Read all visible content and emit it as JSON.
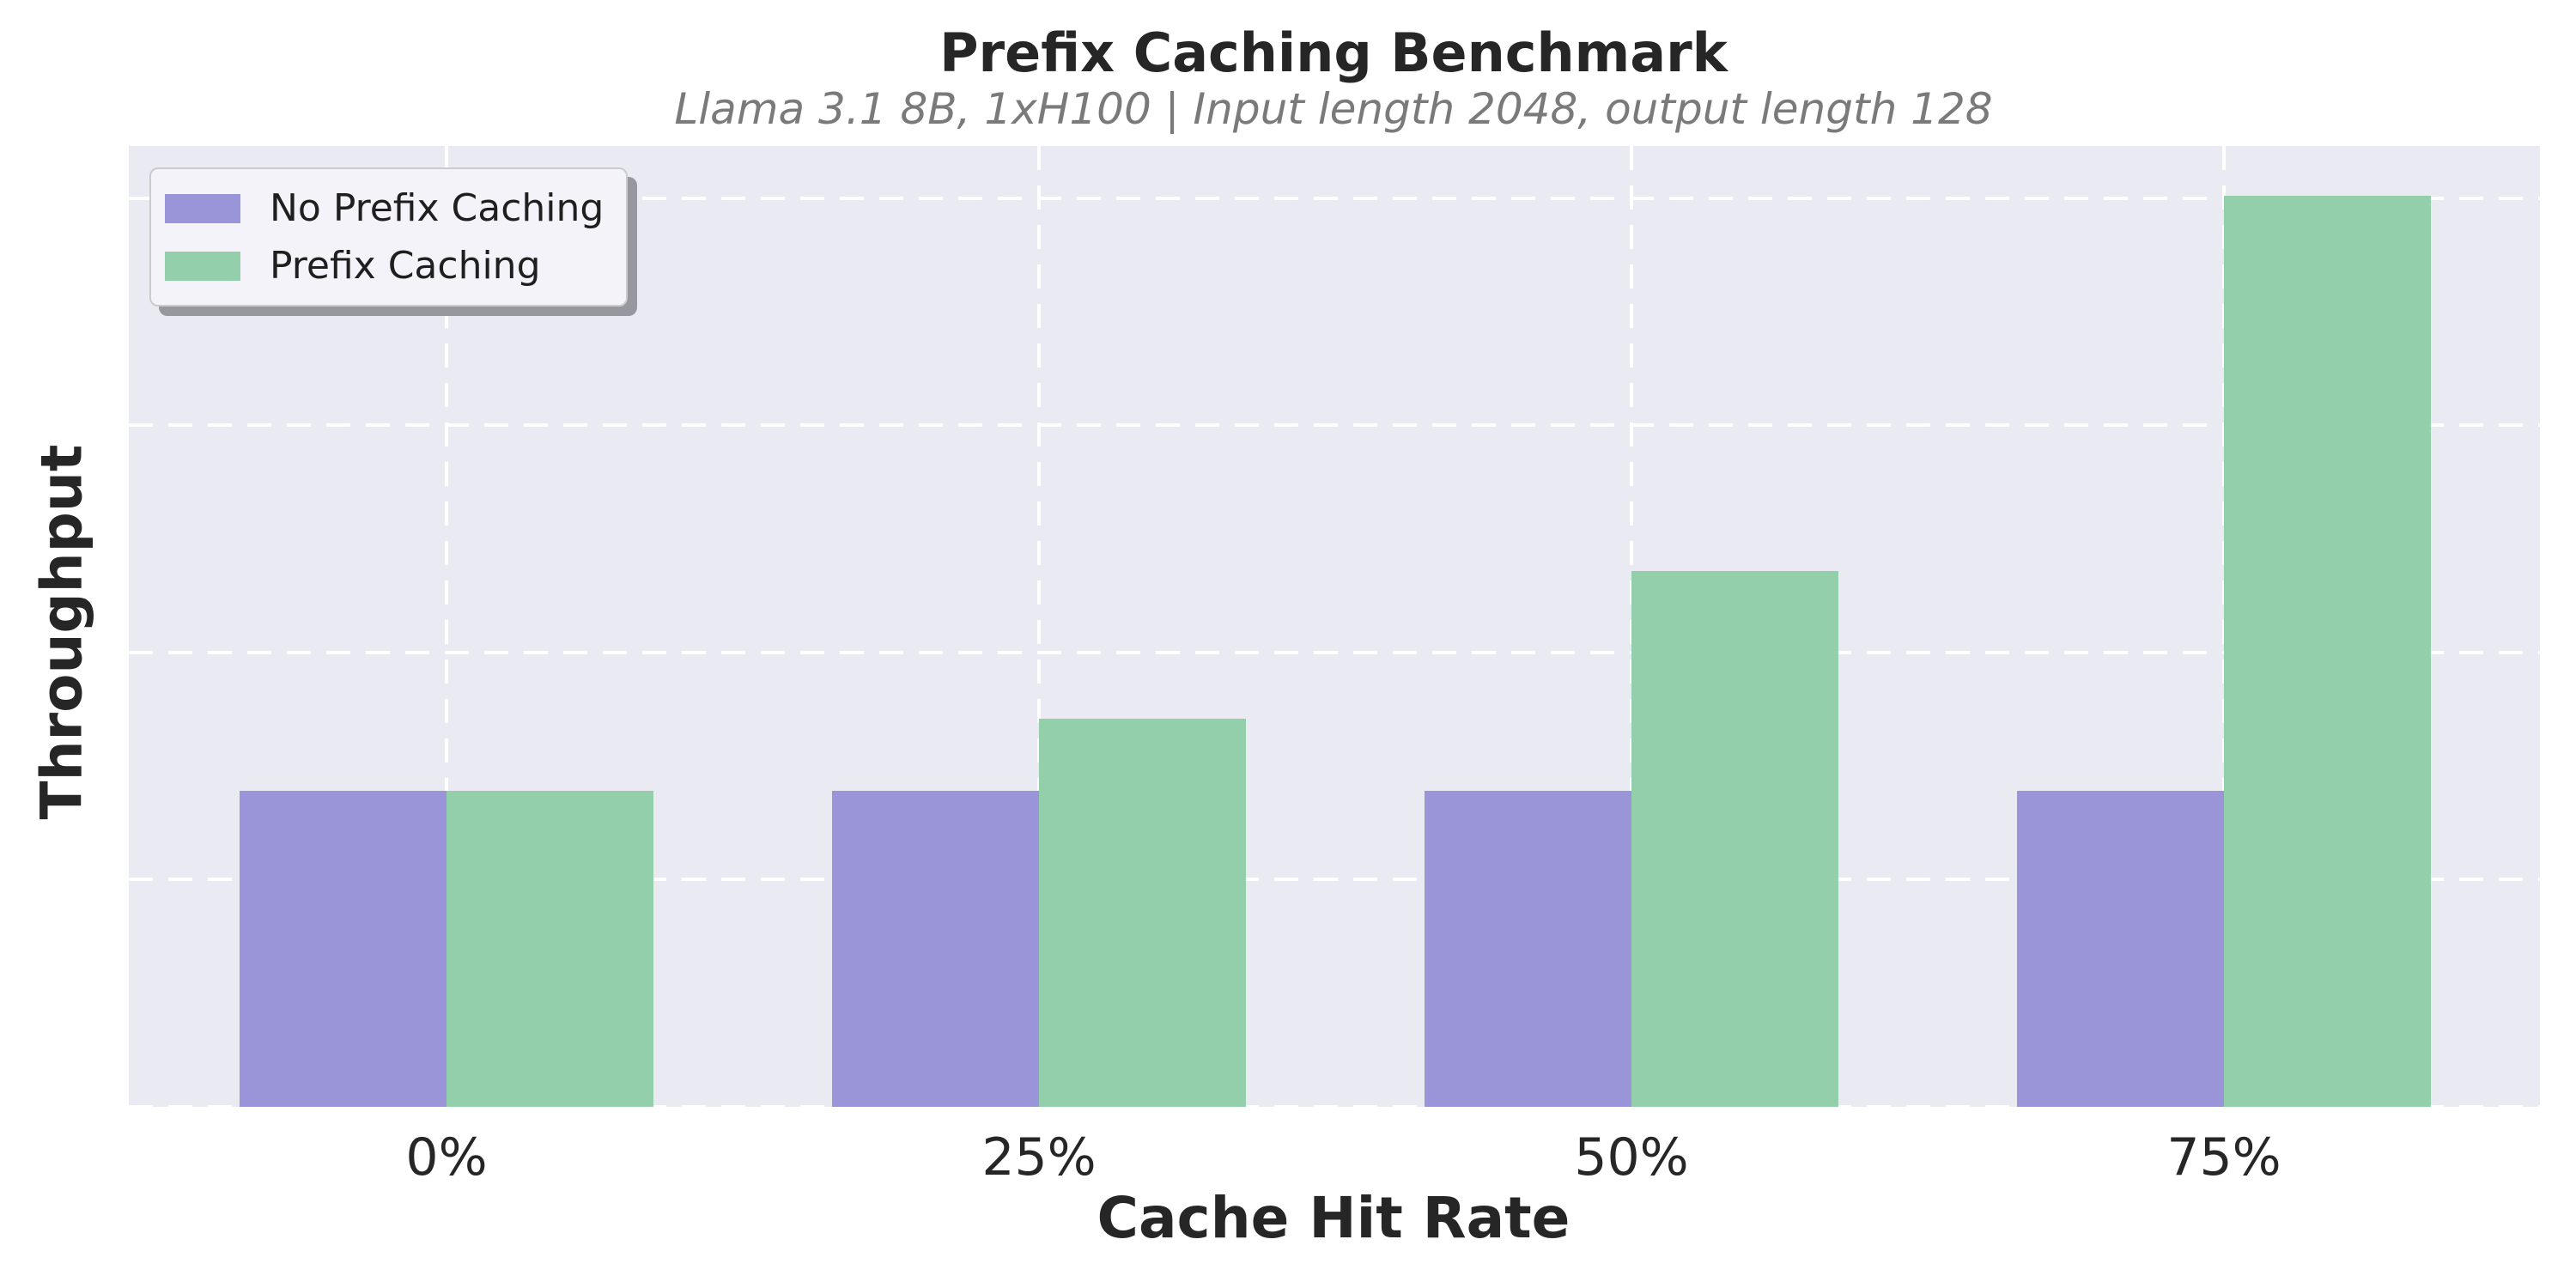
{
  "chart_data": {
    "type": "bar",
    "title": "Prefix Caching Benchmark",
    "subtitle": "Llama 3.1 8B, 1xH100 | Input length 2048, output length 128",
    "xlabel": "Cache Hit Rate",
    "ylabel": "Throughput",
    "categories": [
      "0%",
      "25%",
      "50%",
      "75%"
    ],
    "series": [
      {
        "name": "No Prefix Caching",
        "color": "#9A94D8",
        "values": [
          1.39,
          1.39,
          1.39,
          1.39
        ]
      },
      {
        "name": "Prefix Caching",
        "color": "#93CFAB",
        "values": [
          1.39,
          1.71,
          2.36,
          4.01
        ]
      }
    ],
    "value_units": "gridline units (y axis shows no numeric tick labels)",
    "ylim": [
      0,
      4.23
    ],
    "y_gridline_values": [
      0,
      1,
      2,
      3,
      4
    ],
    "y_tick_labels": [],
    "grid": "dashed white gridlines on both axes",
    "legend_position": "upper-left"
  },
  "colors": {
    "page_background": "#FFFFFF",
    "plot_background": "#EAEAF2",
    "gridline": "#FFFFFF",
    "title_text": "#262626",
    "subtitle_text": "#7A7A7A",
    "axis_text": "#262626",
    "legend_background": "#F3F3F9",
    "legend_border": "#CBCBCB",
    "legend_shadow": "#97979F",
    "series_no_prefix_caching": "#9A94D8",
    "series_prefix_caching": "#93CFAB"
  }
}
